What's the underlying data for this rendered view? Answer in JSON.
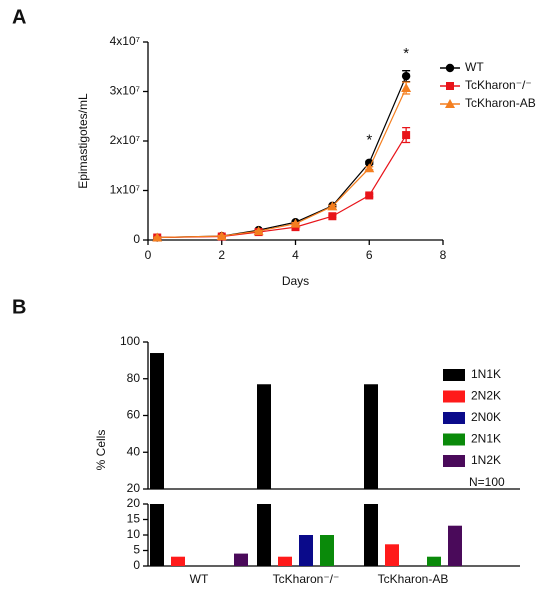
{
  "chart_data": [
    {
      "type": "line",
      "label": "A",
      "xlabel": "Days",
      "ylabel": "Epimastigotes/mL",
      "x": [
        0.25,
        2,
        3,
        4,
        5,
        6,
        7
      ],
      "xlim": [
        0,
        8
      ],
      "xticks": [
        0,
        2,
        4,
        6,
        8
      ],
      "ylim": [
        0,
        40000000.0
      ],
      "yticks": [
        0,
        {
          "value": 10000000.0,
          "label": "1x10⁷"
        },
        {
          "value": 20000000.0,
          "label": "2x10⁷"
        },
        {
          "value": 30000000.0,
          "label": "3x10⁷"
        },
        {
          "value": 40000000.0,
          "label": "4x10⁷"
        }
      ],
      "series": [
        {
          "name": "WT",
          "color": "#000000",
          "marker": "circle",
          "values": [
            500000.0,
            800000.0,
            2000000.0,
            3600000.0,
            6900000.0,
            15600000.0,
            33100000.0
          ],
          "errors": [
            100000.0,
            100000.0,
            100000.0,
            200000.0,
            200000.0,
            300000.0,
            1100000.0
          ]
        },
        {
          "name": "TcKharon⁻/⁻",
          "color": "#e8141a",
          "marker": "square",
          "values": [
            500000.0,
            700000.0,
            1600000.0,
            2600000.0,
            4800000.0,
            9000000.0,
            21200000.0
          ],
          "errors": [
            100000.0,
            100000.0,
            100000.0,
            200000.0,
            200000.0,
            300000.0,
            1500000.0
          ]
        },
        {
          "name": "TcKharon-AB",
          "color": "#f47f20",
          "marker": "triangle",
          "values": [
            500000.0,
            800000.0,
            1800000.0,
            3300000.0,
            6800000.0,
            14500000.0,
            30700000.0
          ],
          "errors": [
            100000.0,
            100000.0,
            100000.0,
            200000.0,
            200000.0,
            300000.0,
            1200000.0
          ]
        }
      ],
      "annotations": [
        {
          "x": 6,
          "y": 15600000.0,
          "text": "*"
        },
        {
          "x": 7,
          "y": 33100000.0,
          "text": "*"
        }
      ],
      "legend": "upper right"
    },
    {
      "type": "bar",
      "label": "B",
      "ylabel": "% Cells",
      "categories": [
        "WT",
        "TcKharon⁻/⁻",
        "TcKharon-AB"
      ],
      "series": [
        {
          "name": "1N1K",
          "color": "#000000",
          "values": [
            94,
            77,
            77
          ]
        },
        {
          "name": "2N2K",
          "color": "#ff1a1a",
          "values": [
            3,
            3,
            7
          ]
        },
        {
          "name": "2N0K",
          "color": "#0a0a8a",
          "values": [
            0,
            10,
            0
          ]
        },
        {
          "name": "2N1K",
          "color": "#0a8a0a",
          "values": [
            0,
            10,
            3
          ]
        },
        {
          "name": "1N2K",
          "color": "#4a0a5a",
          "values": [
            4,
            0,
            13
          ]
        }
      ],
      "ylim": [
        0,
        20
      ],
      "yticks": [
        0,
        5,
        10,
        15,
        20
      ],
      "ylim_break": [
        20,
        100
      ],
      "yticks_break": [
        20,
        40,
        60,
        80,
        100
      ],
      "annotation": "N=100",
      "legend": "right"
    }
  ]
}
